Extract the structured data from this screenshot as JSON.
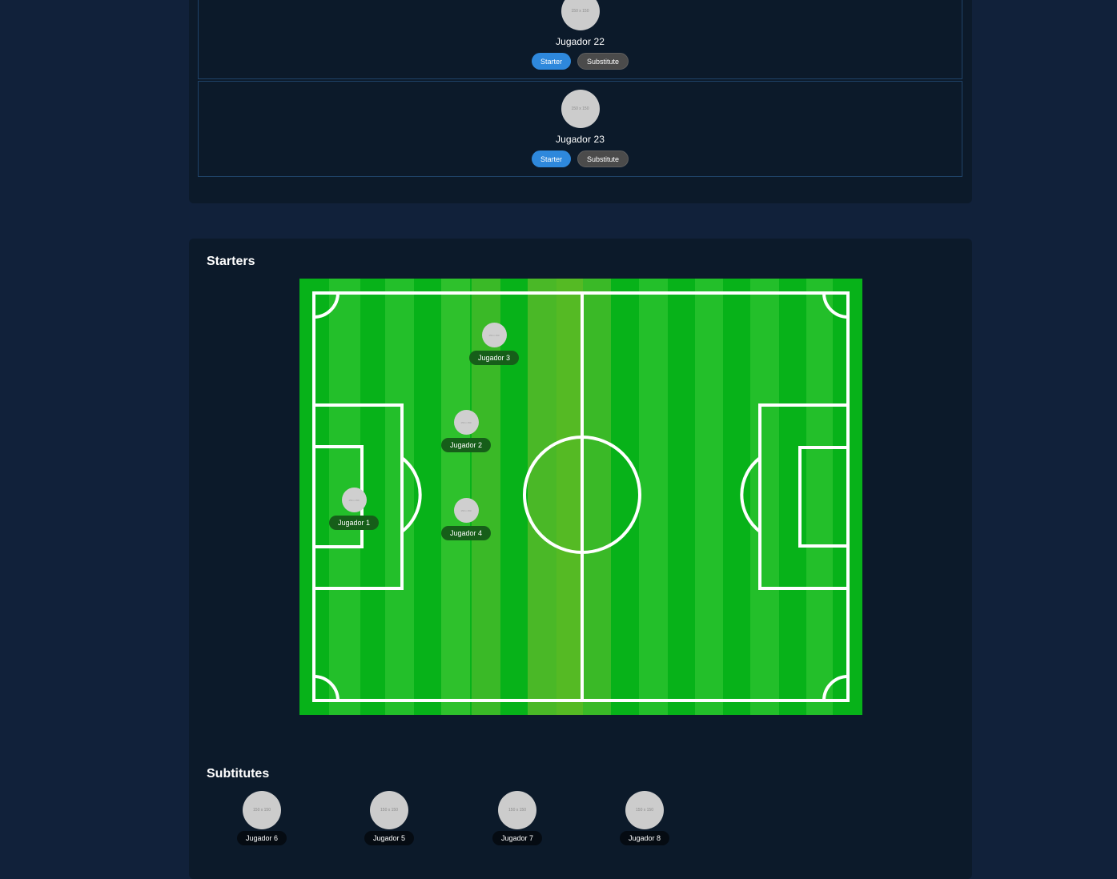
{
  "player_list": [
    {
      "name": "Jugador 22",
      "avatar_text": "150 x 150",
      "starter_label": "Starter",
      "substitute_label": "Substitute"
    },
    {
      "name": "Jugador 23",
      "avatar_text": "150 x 150",
      "starter_label": "Starter",
      "substitute_label": "Substitute"
    }
  ],
  "starters": {
    "title": "Starters",
    "players": [
      {
        "name": "Jugador 3",
        "avatar_text": "150 x 150"
      },
      {
        "name": "Jugador 2",
        "avatar_text": "150 x 150"
      },
      {
        "name": "Jugador 1",
        "avatar_text": "150 x 150"
      },
      {
        "name": "Jugador 4",
        "avatar_text": "150 x 150"
      }
    ]
  },
  "substitutes": {
    "title": "Subtitutes",
    "players": [
      {
        "name": "Jugador 6",
        "avatar_text": "150 x 150"
      },
      {
        "name": "Jugador 5",
        "avatar_text": "150 x 150"
      },
      {
        "name": "Jugador 7",
        "avatar_text": "150 x 150"
      },
      {
        "name": "Jugador 8",
        "avatar_text": "150 x 150"
      }
    ]
  },
  "colors": {
    "page_bg": "#11213a",
    "panel_bg": "#0c1a2a",
    "starter_button": "#2e88dc",
    "substitute_button": "#4b4b4b",
    "pitch_green": "#07b219"
  }
}
